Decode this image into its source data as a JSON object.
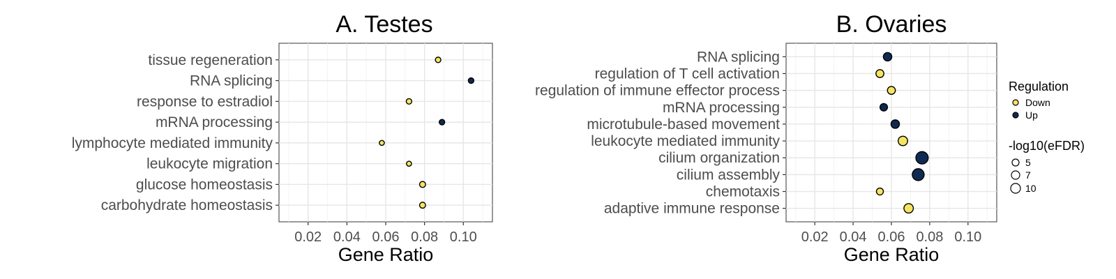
{
  "legend": {
    "regulation_title": "Regulation",
    "down_label": "Down",
    "up_label": "Up",
    "size_title": "-log10(eFDR)",
    "size_labels": [
      "5",
      "7",
      "10"
    ],
    "down_color": "#f5e461",
    "up_color": "#0f2a52"
  },
  "chart_data": [
    {
      "type": "scatter",
      "title": "A. Testes",
      "xlabel": "Gene Ratio",
      "ylabel": "",
      "xlim": [
        0.005,
        0.115
      ],
      "xticks": [
        "0.02",
        "0.04",
        "0.06",
        "0.08",
        "0.10"
      ],
      "grid": true,
      "categories": [
        "tissue regeneration",
        "RNA splicing",
        "response to estradiol",
        "mRNA processing",
        "lymphocyte mediated immunity",
        "leukocyte migration",
        "glucose homeostasis",
        "carbohydrate homeostasis"
      ],
      "points": [
        {
          "term": "tissue regeneration",
          "gene_ratio": 0.087,
          "regulation": "Down",
          "neglog10_efdr": 4
        },
        {
          "term": "RNA splicing",
          "gene_ratio": 0.104,
          "regulation": "Up",
          "neglog10_efdr": 4
        },
        {
          "term": "response to estradiol",
          "gene_ratio": 0.072,
          "regulation": "Down",
          "neglog10_efdr": 4
        },
        {
          "term": "mRNA processing",
          "gene_ratio": 0.089,
          "regulation": "Up",
          "neglog10_efdr": 4
        },
        {
          "term": "lymphocyte mediated immunity",
          "gene_ratio": 0.058,
          "regulation": "Down",
          "neglog10_efdr": 3.5
        },
        {
          "term": "leukocyte migration",
          "gene_ratio": 0.072,
          "regulation": "Down",
          "neglog10_efdr": 3.5
        },
        {
          "term": "glucose homeostasis",
          "gene_ratio": 0.079,
          "regulation": "Down",
          "neglog10_efdr": 4.5
        },
        {
          "term": "carbohydrate homeostasis",
          "gene_ratio": 0.079,
          "regulation": "Down",
          "neglog10_efdr": 4.5
        }
      ]
    },
    {
      "type": "scatter",
      "title": "B. Ovaries",
      "xlabel": "Gene Ratio",
      "ylabel": "",
      "xlim": [
        0.005,
        0.115
      ],
      "xticks": [
        "0.02",
        "0.04",
        "0.06",
        "0.08",
        "0.10"
      ],
      "grid": true,
      "categories": [
        "RNA splicing",
        "regulation of T cell activation",
        "regulation of immune effector process",
        "mRNA processing",
        "microtubule-based movement",
        "leukocyte mediated immunity",
        "cilium organization",
        "cilium assembly",
        "chemotaxis",
        "adaptive immune response"
      ],
      "points": [
        {
          "term": "RNA splicing",
          "gene_ratio": 0.058,
          "regulation": "Up",
          "neglog10_efdr": 7
        },
        {
          "term": "regulation of T cell activation",
          "gene_ratio": 0.054,
          "regulation": "Down",
          "neglog10_efdr": 6.5
        },
        {
          "term": "regulation of immune effector process",
          "gene_ratio": 0.06,
          "regulation": "Down",
          "neglog10_efdr": 6.5
        },
        {
          "term": "mRNA processing",
          "gene_ratio": 0.056,
          "regulation": "Up",
          "neglog10_efdr": 6
        },
        {
          "term": "microtubule-based movement",
          "gene_ratio": 0.062,
          "regulation": "Up",
          "neglog10_efdr": 7
        },
        {
          "term": "leukocyte mediated immunity",
          "gene_ratio": 0.066,
          "regulation": "Down",
          "neglog10_efdr": 8
        },
        {
          "term": "cilium organization",
          "gene_ratio": 0.076,
          "regulation": "Up",
          "neglog10_efdr": 11
        },
        {
          "term": "cilium assembly",
          "gene_ratio": 0.074,
          "regulation": "Up",
          "neglog10_efdr": 10.5
        },
        {
          "term": "chemotaxis",
          "gene_ratio": 0.054,
          "regulation": "Down",
          "neglog10_efdr": 5.5
        },
        {
          "term": "adaptive immune response",
          "gene_ratio": 0.069,
          "regulation": "Down",
          "neglog10_efdr": 8
        }
      ]
    }
  ]
}
